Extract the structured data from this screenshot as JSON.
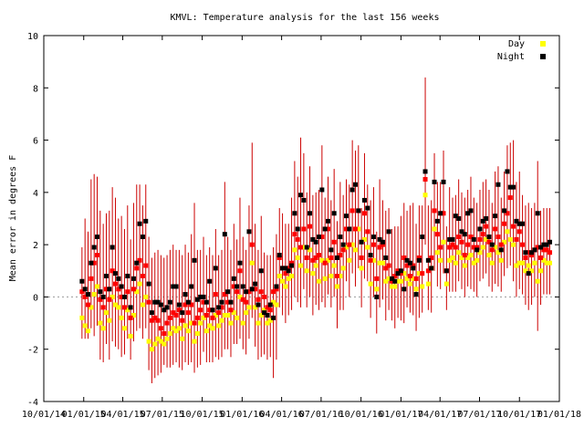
{
  "chart_data": {
    "type": "scatter",
    "title": "KMVL: Temperature analysis for the last 156 weeks",
    "ylabel": "Mean error in degrees F",
    "xlabel": "",
    "ylim": [
      -4,
      10
    ],
    "yticks": [
      -4,
      -2,
      0,
      2,
      4,
      6,
      8,
      10
    ],
    "xlim": [
      "2014-10-01",
      "2018-01-01"
    ],
    "xticks": [
      "10/01/14",
      "01/01/15",
      "04/01/15",
      "07/01/15",
      "10/01/15",
      "01/01/16",
      "04/01/16",
      "07/01/16",
      "10/01/16",
      "01/01/17",
      "04/01/17",
      "07/01/17",
      "10/01/17",
      "01/01/18"
    ],
    "reference_line": 0,
    "legend_position": "top-right",
    "colors": {
      "day": "#ffff00",
      "night": "#000000",
      "mean": "#ff0000",
      "errorbar": "#cc0000",
      "zero_line": "#999999"
    },
    "series": [
      {
        "name": "Day"
      },
      {
        "name": "Night"
      }
    ],
    "points": [
      [
        "2014-12-28",
        0.2,
        -0.8,
        0.6,
        -1.6,
        1.9
      ],
      [
        "2015-01-04",
        0.0,
        -1.1,
        0.3,
        -1.6,
        3.0
      ],
      [
        "2015-01-11",
        -0.3,
        -1.3,
        0.1,
        -1.6,
        2.5
      ],
      [
        "2015-01-18",
        0.7,
        -0.4,
        1.3,
        -1.2,
        4.5
      ],
      [
        "2015-01-25",
        1.3,
        0.1,
        1.9,
        -1.5,
        4.7
      ],
      [
        "2015-02-01",
        1.6,
        0.4,
        2.3,
        -1.1,
        4.6
      ],
      [
        "2015-02-08",
        -0.1,
        -1.0,
        0.2,
        -2.4,
        3.3
      ],
      [
        "2015-02-15",
        -0.4,
        -1.2,
        0.0,
        -2.5,
        2.8
      ],
      [
        "2015-02-22",
        0.3,
        -0.6,
        0.8,
        -1.8,
        3.2
      ],
      [
        "2015-03-01",
        -0.1,
        -0.9,
        0.3,
        -2.4,
        3.3
      ],
      [
        "2015-03-08",
        1.0,
        0.0,
        1.9,
        -1.7,
        4.2
      ],
      [
        "2015-03-15",
        0.5,
        -0.3,
        0.9,
        -1.9,
        3.8
      ],
      [
        "2015-03-22",
        0.3,
        -0.4,
        0.7,
        -2.0,
        3.0
      ],
      [
        "2015-03-29",
        0.0,
        -0.8,
        0.4,
        -2.3,
        3.1
      ],
      [
        "2015-04-05",
        -0.4,
        -1.2,
        0.0,
        -2.2,
        2.6
      ],
      [
        "2015-04-12",
        0.2,
        -0.5,
        0.8,
        -1.6,
        3.5
      ],
      [
        "2015-04-19",
        -0.8,
        -1.5,
        -0.4,
        -2.4,
        2.2
      ],
      [
        "2015-04-26",
        0.3,
        -0.7,
        0.7,
        -1.7,
        3.6
      ],
      [
        "2015-05-03",
        1.1,
        0.2,
        1.3,
        -1.3,
        4.3
      ],
      [
        "2015-05-10",
        1.4,
        0.5,
        2.8,
        -1.2,
        4.3
      ],
      [
        "2015-05-17",
        0.8,
        -0.3,
        2.3,
        -1.6,
        3.5
      ],
      [
        "2015-05-24",
        1.2,
        0.0,
        2.9,
        -1.2,
        4.3
      ],
      [
        "2015-05-31",
        -0.2,
        -1.7,
        0.5,
        -2.8,
        2.3
      ],
      [
        "2015-06-07",
        -0.9,
        -2.0,
        -0.6,
        -3.3,
        1.5
      ],
      [
        "2015-06-14",
        -0.8,
        -1.8,
        -0.2,
        -3.1,
        1.7
      ],
      [
        "2015-06-21",
        -0.9,
        -1.6,
        -0.2,
        -3.0,
        1.8
      ],
      [
        "2015-06-28",
        -1.2,
        -1.7,
        -0.3,
        -2.9,
        1.6
      ],
      [
        "2015-07-05",
        -1.4,
        -1.8,
        -0.5,
        -2.6,
        1.5
      ],
      [
        "2015-07-12",
        -1.0,
        -1.6,
        -0.4,
        -2.7,
        1.6
      ],
      [
        "2015-07-19",
        -0.8,
        -1.4,
        -0.2,
        -2.7,
        1.8
      ],
      [
        "2015-07-26",
        -0.6,
        -1.2,
        0.4,
        -2.6,
        2.0
      ],
      [
        "2015-08-02",
        -0.7,
        -1.3,
        0.4,
        -2.5,
        1.8
      ],
      [
        "2015-08-09",
        -0.5,
        -1.2,
        -0.3,
        -2.7,
        1.8
      ],
      [
        "2015-08-16",
        -0.9,
        -1.6,
        -0.6,
        -2.8,
        1.6
      ],
      [
        "2015-08-23",
        -0.3,
        -1.1,
        0.1,
        -2.5,
        2.0
      ],
      [
        "2015-08-30",
        -0.6,
        -1.3,
        -0.2,
        -2.6,
        1.7
      ],
      [
        "2015-09-06",
        -0.3,
        -1.0,
        0.4,
        -2.5,
        2.4
      ],
      [
        "2015-09-13",
        -1.0,
        -1.7,
        1.4,
        -2.9,
        3.6
      ],
      [
        "2015-09-20",
        -0.8,
        -1.4,
        -0.1,
        -2.7,
        1.8
      ],
      [
        "2015-09-27",
        -0.5,
        -1.0,
        0.0,
        -2.6,
        1.8
      ],
      [
        "2015-10-04",
        -0.2,
        -0.8,
        0.0,
        -2.1,
        2.3
      ],
      [
        "2015-10-11",
        -0.7,
        -1.3,
        -0.2,
        -2.5,
        1.6
      ],
      [
        "2015-10-18",
        -0.5,
        -1.1,
        0.6,
        -2.5,
        1.9
      ],
      [
        "2015-10-25",
        -0.8,
        -1.2,
        -0.5,
        -2.5,
        1.6
      ],
      [
        "2015-11-01",
        0.1,
        -0.7,
        1.1,
        -2.3,
        2.6
      ],
      [
        "2015-11-08",
        -0.6,
        -1.1,
        -0.4,
        -2.4,
        1.6
      ],
      [
        "2015-11-15",
        -0.4,
        -0.9,
        -0.2,
        -2.3,
        1.8
      ],
      [
        "2015-11-22",
        0.1,
        -0.7,
        2.4,
        -2.0,
        4.4
      ],
      [
        "2015-11-29",
        -0.2,
        -0.7,
        0.2,
        -2.0,
        2.3
      ],
      [
        "2015-12-06",
        -0.5,
        -1.0,
        -0.2,
        -2.3,
        1.8
      ],
      [
        "2015-12-13",
        0.4,
        -0.6,
        0.7,
        -1.8,
        2.8
      ],
      [
        "2015-12-20",
        0.2,
        -0.8,
        0.4,
        -1.8,
        2.2
      ],
      [
        "2015-12-27",
        1.0,
        0.0,
        1.3,
        -1.6,
        3.8
      ],
      [
        "2016-01-03",
        -0.1,
        -1.0,
        0.4,
        -2.0,
        2.3
      ],
      [
        "2016-01-10",
        -0.2,
        -0.6,
        0.2,
        -2.2,
        1.8
      ],
      [
        "2016-01-17",
        0.2,
        -0.4,
        2.5,
        -1.6,
        3.5
      ],
      [
        "2016-01-24",
        2.0,
        1.3,
        0.3,
        -0.8,
        5.9
      ],
      [
        "2016-01-31",
        0.3,
        -0.4,
        0.5,
        -1.9,
        2.8
      ],
      [
        "2016-02-07",
        -0.1,
        -1.0,
        -0.3,
        -2.4,
        1.8
      ],
      [
        "2016-02-14",
        0.2,
        -0.7,
        1.0,
        -2.3,
        3.1
      ],
      [
        "2016-02-21",
        0.0,
        -0.5,
        -0.6,
        -2.2,
        1.7
      ],
      [
        "2016-02-28",
        -0.4,
        -1.0,
        -0.7,
        -2.4,
        1.6
      ],
      [
        "2016-03-06",
        -0.5,
        -0.9,
        -0.3,
        -2.3,
        1.6
      ],
      [
        "2016-03-13",
        0.2,
        -0.2,
        -0.8,
        -3.1,
        1.9
      ],
      [
        "2016-03-20",
        0.3,
        -0.3,
        0.4,
        -2.4,
        2.4
      ],
      [
        "2016-03-27",
        1.5,
        0.8,
        1.6,
        -0.4,
        3.4
      ],
      [
        "2016-04-03",
        1.1,
        0.6,
        1.1,
        -0.7,
        3.2
      ],
      [
        "2016-04-10",
        0.9,
        0.4,
        1.1,
        -1.0,
        2.8
      ],
      [
        "2016-04-17",
        1.1,
        0.7,
        1.0,
        -0.7,
        2.8
      ],
      [
        "2016-04-24",
        1.3,
        0.8,
        1.2,
        -0.5,
        3.8
      ],
      [
        "2016-05-01",
        2.4,
        1.8,
        3.2,
        0.0,
        5.2
      ],
      [
        "2016-05-08",
        2.2,
        1.5,
        2.6,
        -0.2,
        4.6
      ],
      [
        "2016-05-15",
        1.9,
        1.2,
        3.9,
        -0.4,
        6.1
      ],
      [
        "2016-05-22",
        2.6,
        1.9,
        3.7,
        0.3,
        5.5
      ],
      [
        "2016-05-29",
        1.5,
        1.0,
        1.9,
        -0.4,
        4.0
      ],
      [
        "2016-06-05",
        2.7,
        1.8,
        3.2,
        0.0,
        5.0
      ],
      [
        "2016-06-12",
        1.4,
        0.9,
        2.2,
        -0.7,
        3.9
      ],
      [
        "2016-06-19",
        1.5,
        1.2,
        2.1,
        -0.3,
        4.0
      ],
      [
        "2016-06-26",
        1.6,
        0.6,
        2.3,
        -0.5,
        4.1
      ],
      [
        "2016-07-03",
        2.3,
        1.4,
        4.1,
        -0.2,
        5.8
      ],
      [
        "2016-07-10",
        1.3,
        0.7,
        2.6,
        -0.4,
        3.8
      ],
      [
        "2016-07-17",
        2.6,
        1.4,
        2.9,
        0.1,
        4.6
      ],
      [
        "2016-07-24",
        1.5,
        0.8,
        1.8,
        -0.4,
        3.7
      ],
      [
        "2016-07-31",
        2.1,
        1.2,
        3.2,
        0.0,
        4.9
      ],
      [
        "2016-08-07",
        0.8,
        0.4,
        1.5,
        -1.2,
        2.9
      ],
      [
        "2016-08-14",
        1.6,
        0.8,
        2.3,
        -0.5,
        4.4
      ],
      [
        "2016-08-21",
        1.8,
        1.1,
        2.0,
        -0.5,
        3.9
      ],
      [
        "2016-08-28",
        2.6,
        1.9,
        3.1,
        0.6,
        4.5
      ],
      [
        "2016-09-04",
        2.0,
        1.4,
        2.6,
        0.0,
        4.3
      ],
      [
        "2016-09-11",
        3.3,
        2.0,
        4.1,
        0.9,
        6.0
      ],
      [
        "2016-09-18",
        2.6,
        1.8,
        4.3,
        0.4,
        5.6
      ],
      [
        "2016-09-25",
        3.3,
        2.6,
        3.3,
        1.1,
        5.8
      ],
      [
        "2016-10-02",
        1.5,
        1.1,
        2.1,
        -0.4,
        3.4
      ],
      [
        "2016-10-09",
        3.2,
        2.2,
        3.7,
        0.7,
        5.5
      ],
      [
        "2016-10-16",
        2.5,
        1.9,
        3.4,
        0.6,
        4.3
      ],
      [
        "2016-10-23",
        1.4,
        0.5,
        1.6,
        -0.8,
        3.7
      ],
      [
        "2016-10-30",
        2.0,
        1.4,
        2.3,
        0.0,
        4.2
      ],
      [
        "2016-11-06",
        0.7,
        0.3,
        0.0,
        -1.4,
        2.5
      ],
      [
        "2016-11-13",
        1.9,
        1.3,
        2.2,
        -0.4,
        4.5
      ],
      [
        "2016-11-20",
        2.0,
        1.3,
        2.1,
        -0.1,
        3.7
      ],
      [
        "2016-11-27",
        1.1,
        0.6,
        1.5,
        -0.9,
        3.3
      ],
      [
        "2016-12-04",
        1.2,
        0.7,
        2.5,
        -0.5,
        3.4
      ],
      [
        "2016-12-11",
        0.6,
        0.4,
        0.7,
        -0.9,
        2.6
      ],
      [
        "2016-12-18",
        0.8,
        0.4,
        0.6,
        -1.2,
        2.7
      ],
      [
        "2016-12-25",
        1.0,
        0.6,
        0.9,
        -0.8,
        2.7
      ],
      [
        "2017-01-01",
        0.9,
        0.6,
        1.0,
        -0.9,
        3.1
      ],
      [
        "2017-01-08",
        1.5,
        0.9,
        0.3,
        -1.0,
        3.6
      ],
      [
        "2017-01-15",
        1.2,
        0.7,
        1.4,
        -0.4,
        3.3
      ],
      [
        "2017-01-22",
        0.8,
        0.5,
        1.3,
        -0.6,
        3.5
      ],
      [
        "2017-01-29",
        1.2,
        0.7,
        1.1,
        -0.7,
        3.6
      ],
      [
        "2017-02-05",
        0.7,
        0.3,
        0.1,
        -1.3,
        2.8
      ],
      [
        "2017-02-12",
        1.5,
        0.9,
        1.4,
        -0.8,
        3.5
      ],
      [
        "2017-02-19",
        0.9,
        0.4,
        2.3,
        -0.6,
        3.5
      ],
      [
        "2017-02-26",
        4.5,
        3.9,
        4.8,
        2.0,
        8.4
      ],
      [
        "2017-03-05",
        1.0,
        0.5,
        1.4,
        -0.5,
        3.5
      ],
      [
        "2017-03-12",
        1.5,
        1.1,
        1.1,
        -0.6,
        3.7
      ],
      [
        "2017-03-19",
        3.3,
        2.6,
        4.4,
        1.0,
        5.5
      ],
      [
        "2017-03-26",
        2.4,
        1.7,
        2.9,
        0.4,
        4.4
      ],
      [
        "2017-04-02",
        1.9,
        1.4,
        3.2,
        0.3,
        4.4
      ],
      [
        "2017-04-09",
        3.2,
        2.1,
        4.4,
        0.9,
        5.6
      ],
      [
        "2017-04-16",
        1.0,
        0.5,
        1.0,
        -0.5,
        2.7
      ],
      [
        "2017-04-23",
        1.9,
        1.4,
        2.2,
        0.2,
        4.2
      ],
      [
        "2017-04-30",
        2.0,
        1.5,
        2.2,
        0.2,
        3.8
      ],
      [
        "2017-05-07",
        1.9,
        1.3,
        3.1,
        0.2,
        3.9
      ],
      [
        "2017-05-14",
        2.3,
        1.7,
        3.0,
        0.6,
        4.5
      ],
      [
        "2017-05-21",
        2.1,
        1.5,
        2.5,
        0.3,
        4.0
      ],
      [
        "2017-05-28",
        1.6,
        1.2,
        2.4,
        0.0,
        3.8
      ],
      [
        "2017-06-04",
        2.0,
        1.5,
        3.2,
        0.4,
        4.1
      ],
      [
        "2017-06-11",
        2.3,
        1.6,
        3.3,
        0.3,
        4.6
      ],
      [
        "2017-06-18",
        1.9,
        1.3,
        2.2,
        0.2,
        3.8
      ],
      [
        "2017-06-25",
        1.9,
        1.4,
        1.8,
        0.0,
        3.6
      ],
      [
        "2017-07-02",
        2.2,
        1.7,
        2.6,
        0.6,
        4.1
      ],
      [
        "2017-07-09",
        2.4,
        1.9,
        2.9,
        0.7,
        4.4
      ],
      [
        "2017-07-16",
        2.7,
        2.2,
        3.0,
        0.9,
        4.5
      ],
      [
        "2017-07-23",
        2.1,
        1.6,
        2.3,
        0.4,
        4.1
      ],
      [
        "2017-07-30",
        1.8,
        1.3,
        2.0,
        0.2,
        3.6
      ],
      [
        "2017-08-06",
        2.6,
        1.9,
        3.1,
        0.5,
        4.8
      ],
      [
        "2017-08-13",
        2.3,
        1.7,
        4.3,
        0.4,
        5.0
      ],
      [
        "2017-08-20",
        2.0,
        1.4,
        1.8,
        0.2,
        3.8
      ],
      [
        "2017-08-27",
        2.8,
        2.1,
        3.3,
        0.8,
        4.8
      ],
      [
        "2017-09-03",
        3.2,
        2.5,
        4.8,
        1.1,
        5.8
      ],
      [
        "2017-09-10",
        3.8,
        2.2,
        4.2,
        1.2,
        5.9
      ],
      [
        "2017-09-17",
        2.7,
        2.0,
        4.2,
        0.6,
        6.0
      ],
      [
        "2017-09-24",
        2.2,
        1.2,
        2.9,
        0.0,
        4.4
      ],
      [
        "2017-10-01",
        2.5,
        1.3,
        2.8,
        0.3,
        4.8
      ],
      [
        "2017-10-08",
        2.0,
        1.3,
        2.8,
        0.1,
        3.9
      ],
      [
        "2017-10-15",
        1.5,
        1.0,
        1.7,
        -0.3,
        3.5
      ],
      [
        "2017-10-22",
        1.7,
        1.2,
        0.9,
        -0.5,
        3.6
      ],
      [
        "2017-10-29",
        1.6,
        1.0,
        1.7,
        -0.3,
        3.4
      ],
      [
        "2017-11-05",
        1.8,
        1.3,
        1.8,
        0.0,
        3.6
      ],
      [
        "2017-11-12",
        1.9,
        0.6,
        3.2,
        -1.3,
        5.2
      ],
      [
        "2017-11-19",
        1.5,
        1.0,
        1.9,
        -0.3,
        3.3
      ],
      [
        "2017-11-26",
        1.8,
        1.4,
        2.0,
        0.1,
        3.4
      ],
      [
        "2017-12-03",
        1.8,
        1.3,
        2.0,
        0.1,
        3.4
      ],
      [
        "2017-12-10",
        1.7,
        1.3,
        2.1,
        0.1,
        3.4
      ]
    ]
  }
}
